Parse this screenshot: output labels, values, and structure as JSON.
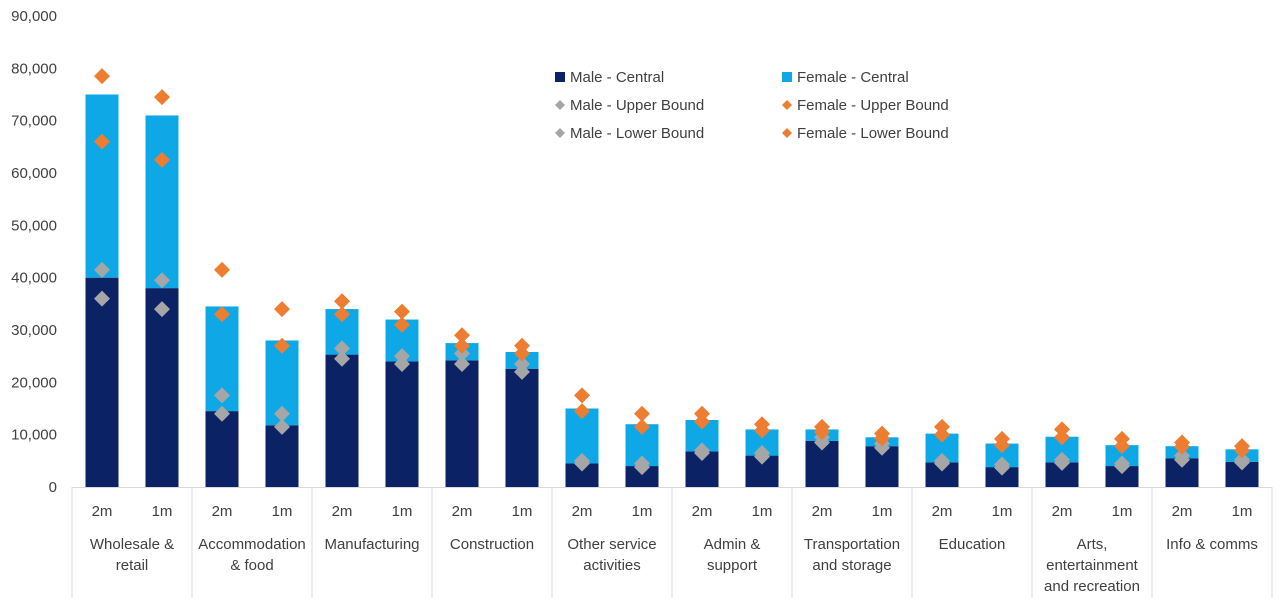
{
  "chart_data": {
    "type": "bar",
    "stacked": true,
    "title": "",
    "xlabel": "",
    "ylabel": "",
    "ylim": [
      0,
      90000
    ],
    "yticks": [
      0,
      10000,
      20000,
      30000,
      40000,
      50000,
      60000,
      70000,
      80000,
      90000
    ],
    "ytick_labels": [
      "0",
      "10,000",
      "20,000",
      "30,000",
      "40,000",
      "50,000",
      "60,000",
      "70,000",
      "80,000",
      "90,000"
    ],
    "grid": false,
    "legend_position": "top-right",
    "groups": [
      {
        "label": [
          "Wholesale &",
          "retail"
        ],
        "subcategories": [
          "2m",
          "1m"
        ]
      },
      {
        "label": [
          "Accommodation",
          "& food"
        ],
        "subcategories": [
          "2m",
          "1m"
        ]
      },
      {
        "label": [
          "Manufacturing"
        ],
        "subcategories": [
          "2m",
          "1m"
        ]
      },
      {
        "label": [
          "Construction"
        ],
        "subcategories": [
          "2m",
          "1m"
        ]
      },
      {
        "label": [
          "Other service",
          "activities"
        ],
        "subcategories": [
          "2m",
          "1m"
        ]
      },
      {
        "label": [
          "Admin &",
          "support"
        ],
        "subcategories": [
          "2m",
          "1m"
        ]
      },
      {
        "label": [
          "Transportation",
          "and storage"
        ],
        "subcategories": [
          "2m",
          "1m"
        ]
      },
      {
        "label": [
          "Education"
        ],
        "subcategories": [
          "2m",
          "1m"
        ]
      },
      {
        "label": [
          "Arts,",
          "entertainment",
          "and recreation"
        ],
        "subcategories": [
          "2m",
          "1m"
        ]
      },
      {
        "label": [
          "Info & comms"
        ],
        "subcategories": [
          "2m",
          "1m"
        ]
      }
    ],
    "series": [
      {
        "name": "Male -  Central",
        "kind": "bar",
        "color": "#0b2265",
        "values": [
          40000,
          38000,
          14500,
          11800,
          25300,
          24000,
          24200,
          22600,
          4500,
          4000,
          6800,
          6000,
          8800,
          7800,
          4700,
          3800,
          4700,
          4000,
          5500,
          4800
        ]
      },
      {
        "name": "Female - Central",
        "kind": "bar",
        "color": "#0fa8e6",
        "values": [
          35000,
          33000,
          20000,
          16200,
          8700,
          8000,
          3300,
          3200,
          10500,
          8000,
          6000,
          5000,
          2200,
          1700,
          5500,
          4500,
          4900,
          4000,
          2300,
          2400
        ]
      },
      {
        "name": "Male -  Upper Bound",
        "kind": "marker",
        "color": "#a6a6a6",
        "values": [
          41500,
          39500,
          17500,
          14000,
          26500,
          25000,
          25500,
          23500,
          5000,
          4500,
          7000,
          6500,
          9500,
          8300,
          5000,
          4300,
          5200,
          4500,
          6000,
          5200
        ]
      },
      {
        "name": "Female - Upper Bound",
        "kind": "marker",
        "color": "#ed7d31",
        "values": [
          78500,
          74500,
          41500,
          34000,
          35500,
          33500,
          29000,
          27000,
          17500,
          14000,
          14000,
          12000,
          11500,
          10200,
          11500,
          9200,
          11000,
          9200,
          8500,
          7800
        ]
      },
      {
        "name": "Male -  Lower Bound",
        "kind": "marker",
        "color": "#a6a6a6",
        "values": [
          36000,
          34000,
          14000,
          11500,
          24500,
          23500,
          23500,
          22000,
          4500,
          3800,
          6500,
          5800,
          8500,
          7500,
          4500,
          3700,
          4600,
          4000,
          5200,
          4700
        ]
      },
      {
        "name": "Female - Lower Bound",
        "kind": "marker",
        "color": "#ed7d31",
        "values": [
          66000,
          62500,
          33000,
          27000,
          33000,
          31000,
          27000,
          25500,
          14500,
          11500,
          12500,
          10800,
          10500,
          9300,
          10000,
          8000,
          9500,
          7800,
          7700,
          7000
        ]
      }
    ]
  }
}
